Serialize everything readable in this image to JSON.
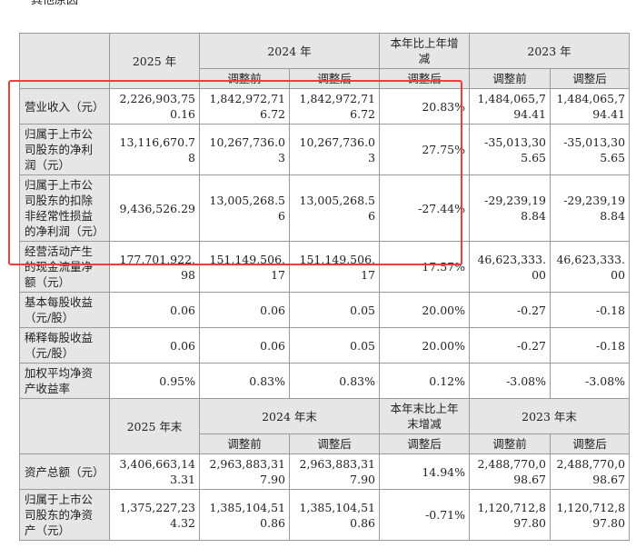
{
  "caption": "其他原因",
  "header1": {
    "col_2025": "2025 年",
    "col_2024": "2024 年",
    "col_change": "本年比上年增减",
    "col_2023": "2023 年",
    "before": "调整前",
    "after": "调整后",
    "after_change": "调整后"
  },
  "rows1": [
    {
      "label": "营业收入（元）",
      "v2025": "2,226,903,750.16",
      "v2024b": "1,842,972,716.72",
      "v2024a": "1,842,972,716.72",
      "chg": "20.83%",
      "v2023b": "1,484,065,794.41",
      "v2023a": "1,484,065,794.41"
    },
    {
      "label": "归属于上市公司股东的净利润（元）",
      "v2025": "13,116,670.78",
      "v2024b": "10,267,736.03",
      "v2024a": "10,267,736.03",
      "chg": "27.75%",
      "v2023b": "-35,013,305.65",
      "v2023a": "-35,013,305.65"
    },
    {
      "label": "归属于上市公司股东的扣除非经常性损益的净利润（元）",
      "v2025": "9,436,526.29",
      "v2024b": "13,005,268.56",
      "v2024a": "13,005,268.56",
      "chg": "-27.44%",
      "v2023b": "-29,239,198.84",
      "v2023a": "-29,239,198.84"
    },
    {
      "label": "经营活动产生的现金流量净额（元）",
      "v2025": "177,701,922.98",
      "v2024b": "151,149,506.17",
      "v2024a": "151,149,506.17",
      "chg": "17.57%",
      "v2023b": "46,623,333.00",
      "v2023a": "46,623,333.00"
    },
    {
      "label": "基本每股收益（元/股）",
      "v2025": "0.06",
      "v2024b": "0.06",
      "v2024a": "0.05",
      "chg": "20.00%",
      "v2023b": "-0.27",
      "v2023a": "-0.18"
    },
    {
      "label": "稀释每股收益（元/股）",
      "v2025": "0.06",
      "v2024b": "0.06",
      "v2024a": "0.05",
      "chg": "20.00%",
      "v2023b": "-0.27",
      "v2023a": "-0.18"
    },
    {
      "label": "加权平均净资产收益率",
      "v2025": "0.95%",
      "v2024b": "0.83%",
      "v2024a": "0.83%",
      "chg": "0.12%",
      "v2023b": "-3.08%",
      "v2023a": "-3.08%"
    }
  ],
  "header2": {
    "col_2025": "2025 年末",
    "col_2024": "2024 年末",
    "col_change": "本年末比上年末增减",
    "col_2023": "2023 年末",
    "before": "调整前",
    "after": "调整后",
    "after_change": "调整后"
  },
  "rows2": [
    {
      "label": "资产总额（元）",
      "v2025": "3,406,663,143.31",
      "v2024b": "2,963,883,317.90",
      "v2024a": "2,963,883,317.90",
      "chg": "14.94%",
      "v2023b": "2,488,770,098.67",
      "v2023a": "2,488,770,098.67"
    },
    {
      "label": "归属于上市公司股东的净资产（元）",
      "v2025": "1,375,227,234.32",
      "v2024b": "1,385,104,510.86",
      "v2024a": "1,385,104,510.86",
      "chg": "-0.71%",
      "v2023b": "1,120,712,897.80",
      "v2023a": "1,120,712,897.80"
    }
  ],
  "highlight_color": "#e8413d"
}
